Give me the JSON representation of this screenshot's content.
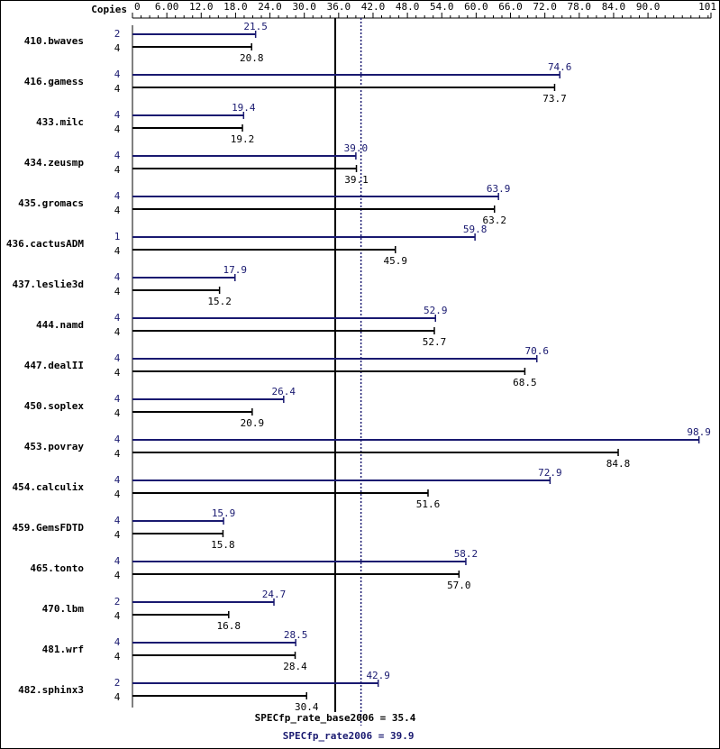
{
  "chart_data": {
    "type": "bar",
    "orientation": "horizontal",
    "copies_header": "Copies",
    "x_ticks": [
      "0",
      "6.00",
      "12.0",
      "18.0",
      "24.0",
      "30.0",
      "36.0",
      "42.0",
      "48.0",
      "54.0",
      "60.0",
      "66.0",
      "72.0",
      "78.0",
      "84.0",
      "90.0",
      "101"
    ],
    "xlim": [
      0,
      101
    ],
    "colors": {
      "peak": "#191970",
      "base": "#000000",
      "axis": "#000000"
    },
    "benchmarks": [
      {
        "name": "410.bwaves",
        "peak_copies": "2",
        "peak": 21.5,
        "base_copies": "4",
        "base": 20.8
      },
      {
        "name": "416.gamess",
        "peak_copies": "4",
        "peak": 74.6,
        "base_copies": "4",
        "base": 73.7
      },
      {
        "name": "433.milc",
        "peak_copies": "4",
        "peak": 19.4,
        "base_copies": "4",
        "base": 19.2
      },
      {
        "name": "434.zeusmp",
        "peak_copies": "4",
        "peak": 39.0,
        "base_copies": "4",
        "base": 39.1
      },
      {
        "name": "435.gromacs",
        "peak_copies": "4",
        "peak": 63.9,
        "base_copies": "4",
        "base": 63.2
      },
      {
        "name": "436.cactusADM",
        "peak_copies": "1",
        "peak": 59.8,
        "base_copies": "4",
        "base": 45.9
      },
      {
        "name": "437.leslie3d",
        "peak_copies": "4",
        "peak": 17.9,
        "base_copies": "4",
        "base": 15.2
      },
      {
        "name": "444.namd",
        "peak_copies": "4",
        "peak": 52.9,
        "base_copies": "4",
        "base": 52.7
      },
      {
        "name": "447.dealII",
        "peak_copies": "4",
        "peak": 70.6,
        "base_copies": "4",
        "base": 68.5
      },
      {
        "name": "450.soplex",
        "peak_copies": "4",
        "peak": 26.4,
        "base_copies": "4",
        "base": 20.9
      },
      {
        "name": "453.povray",
        "peak_copies": "4",
        "peak": 98.9,
        "base_copies": "4",
        "base": 84.8
      },
      {
        "name": "454.calculix",
        "peak_copies": "4",
        "peak": 72.9,
        "base_copies": "4",
        "base": 51.6
      },
      {
        "name": "459.GemsFDTD",
        "peak_copies": "4",
        "peak": 15.9,
        "base_copies": "4",
        "base": 15.8
      },
      {
        "name": "465.tonto",
        "peak_copies": "4",
        "peak": 58.2,
        "base_copies": "4",
        "base": 57.0
      },
      {
        "name": "470.lbm",
        "peak_copies": "2",
        "peak": 24.7,
        "base_copies": "4",
        "base": 16.8
      },
      {
        "name": "481.wrf",
        "peak_copies": "4",
        "peak": 28.5,
        "base_copies": "4",
        "base": 28.4
      },
      {
        "name": "482.sphinx3",
        "peak_copies": "2",
        "peak": 42.9,
        "base_copies": "4",
        "base": 30.4
      }
    ],
    "reference_lines": {
      "base": {
        "label": "SPECfp_rate_base2006 = 35.4",
        "value": 35.4,
        "style": "solid"
      },
      "peak": {
        "label": "SPECfp_rate2006 = 39.9",
        "value": 39.9,
        "style": "dotted"
      }
    }
  }
}
